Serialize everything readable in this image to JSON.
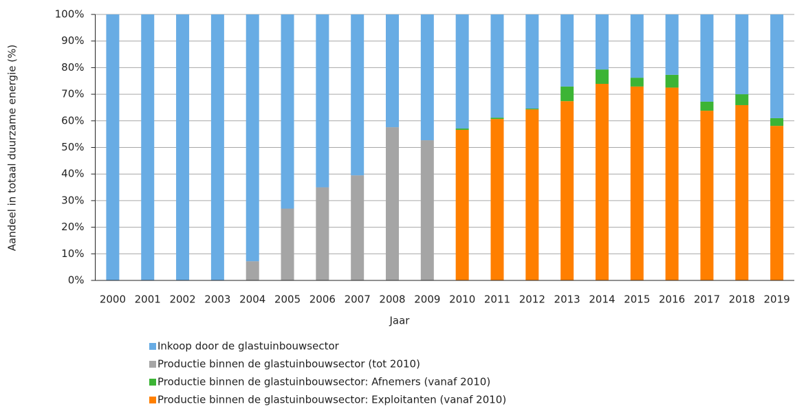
{
  "chart_data": {
    "type": "stacked_bar",
    "x_label": "Jaar",
    "y_label": "Aandeel in totaal duurzame energie (%)",
    "categories": [
      "2000",
      "2001",
      "2002",
      "2003",
      "2004",
      "2005",
      "2006",
      "2007",
      "2008",
      "2009",
      "2010",
      "2011",
      "2012",
      "2013",
      "2014",
      "2015",
      "2016",
      "2017",
      "2018",
      "2019"
    ],
    "series": [
      {
        "name": "Inkoop door de glastuinbouwsector",
        "color": "#68ace4",
        "values": [
          100,
          100,
          100,
          100,
          92.8,
          73,
          65,
          60.5,
          42.4,
          47.3,
          42.9,
          38.8,
          35.4,
          27.1,
          20.7,
          23.8,
          22.7,
          32.8,
          30,
          39
        ]
      },
      {
        "name": "Productie binnen de glastuinbouwsector (tot 2010)",
        "color": "#a5a5a5",
        "values": [
          0,
          0,
          0,
          0,
          7.2,
          27,
          35,
          39.5,
          57.6,
          52.7,
          0,
          0,
          0,
          0,
          0,
          0,
          0,
          0,
          0,
          0
        ]
      },
      {
        "name": "Productie binnen de glastuinbouwsector: Afnemers (vanaf 2010)",
        "color": "#3cb435",
        "values": [
          0,
          0,
          0,
          0,
          0,
          0,
          0,
          0,
          0,
          0,
          0.5,
          0.5,
          0.3,
          5.5,
          5.4,
          3.3,
          4.8,
          3.4,
          4.1,
          2.9
        ]
      },
      {
        "name": "Productie binnen de glastuinbouwsector: Exploitanten (vanaf 2010)",
        "color": "#ff7f00",
        "values": [
          0,
          0,
          0,
          0,
          0,
          0,
          0,
          0,
          0,
          0,
          56.6,
          60.7,
          64.3,
          67.4,
          73.9,
          72.9,
          72.5,
          63.8,
          65.9,
          58.1
        ]
      }
    ],
    "ylim": [
      0,
      100
    ],
    "yticks": [
      {
        "value": 0,
        "label": "0%"
      },
      {
        "value": 10,
        "label": "10%"
      },
      {
        "value": 20,
        "label": "20%"
      },
      {
        "value": 30,
        "label": "30%"
      },
      {
        "value": 40,
        "label": "40%"
      },
      {
        "value": 50,
        "label": "50%"
      },
      {
        "value": 60,
        "label": "60%"
      },
      {
        "value": 70,
        "label": "70%"
      },
      {
        "value": 80,
        "label": "80%"
      },
      {
        "value": 90,
        "label": "90%"
      },
      {
        "value": 100,
        "label": "100%"
      }
    ],
    "grid": true,
    "legend": "bottom"
  }
}
